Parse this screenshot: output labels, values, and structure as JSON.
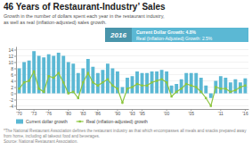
{
  "chart_data": {
    "type": "bar",
    "title": "46 Years of Restaurant-Industry’ Sales",
    "subtitle": "Growth in the number of dollars spent each year in the restaurant industry,\nas well as real (inflation-adjusted) sales growth.",
    "annotations": [
      "2016",
      "Current Dollar Growth: 4.8%",
      "Real (Inflation-Adjusted) Growth: 2.5%"
    ],
    "footnote": "*The National Restaurant Association defines the restaurant industry as that which encompasses all meals and snacks prepared away from home, including all takeout food and beverages.\nSource: National Restaurant Association.",
    "categories": [
      "'70",
      null,
      null,
      "'73",
      null,
      null,
      "'76",
      null,
      null,
      null,
      "'80",
      null,
      null,
      "'83",
      null,
      null,
      "'86",
      null,
      null,
      null,
      "'90",
      null,
      null,
      "'93",
      null,
      "'95",
      null,
      null,
      null,
      null,
      "'00",
      null,
      null,
      null,
      null,
      "'05",
      null,
      null,
      null,
      null,
      null,
      "'11",
      null,
      null,
      null,
      null,
      "'16"
    ],
    "series": [
      {
        "name": "Current dollar growth",
        "type": "bar",
        "color": "#5bb8d4",
        "values": [
          8.0,
          10.0,
          10.5,
          13.5,
          12.0,
          11.5,
          12.5,
          12.0,
          13.0,
          12.0,
          10.0,
          9.5,
          6.5,
          8.0,
          11.0,
          8.5,
          6.5,
          7.5,
          9.5,
          8.0,
          7.0,
          2.0,
          5.0,
          5.5,
          7.0,
          6.5,
          6.5,
          7.0,
          7.0,
          7.5,
          7.0,
          2.5,
          3.0,
          4.5,
          6.5,
          6.5,
          6.5,
          5.0,
          2.5,
          -1.5,
          4.0,
          5.5,
          5.0,
          3.5,
          4.5,
          3.5,
          4.8
        ]
      },
      {
        "name": "Real (inflation-adjusted) growth",
        "type": "line",
        "color": "#8dc63f",
        "marker": "square",
        "values": [
          1.5,
          3.5,
          4.0,
          7.0,
          1.5,
          0.5,
          5.5,
          5.0,
          6.5,
          3.5,
          0.0,
          0.5,
          -1.5,
          3.5,
          6.5,
          3.5,
          2.5,
          3.5,
          4.5,
          2.5,
          1.5,
          -3.0,
          1.5,
          2.0,
          3.0,
          2.5,
          2.5,
          3.5,
          4.0,
          4.5,
          3.5,
          -1.0,
          0.5,
          1.5,
          3.0,
          2.5,
          2.0,
          0.5,
          -1.5,
          -4.0,
          2.0,
          1.5,
          1.5,
          0.5,
          1.0,
          2.0,
          2.5
        ]
      }
    ],
    "ylim": [
      -5,
      15
    ],
    "yticks": [
      -4,
      -2,
      0,
      2,
      4,
      6,
      8,
      10,
      12,
      14
    ],
    "grid": true,
    "legend": "bottom"
  }
}
